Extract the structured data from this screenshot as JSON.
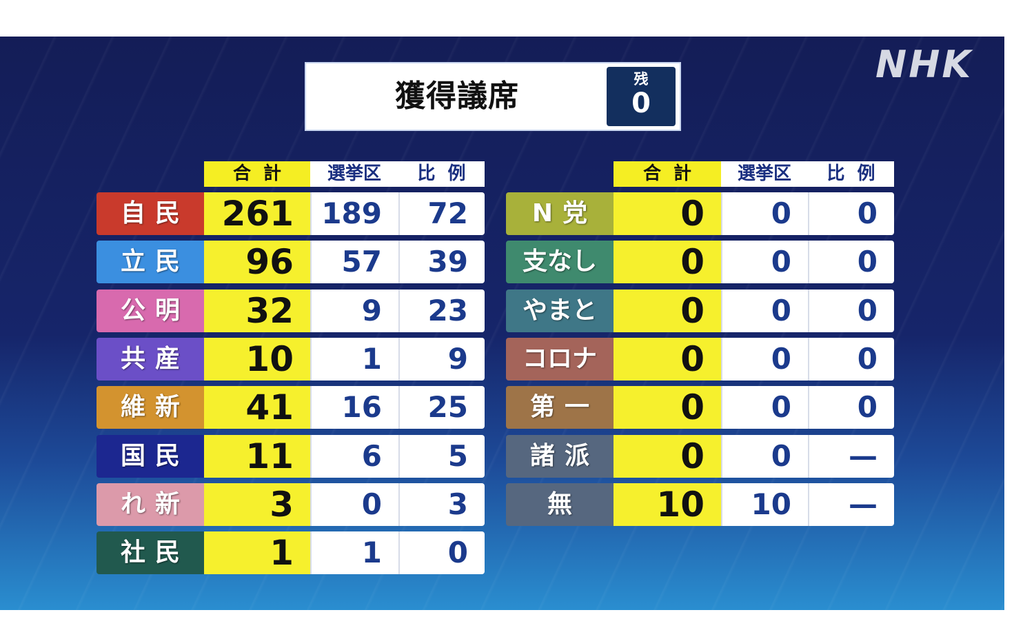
{
  "header": {
    "title": "獲得議席",
    "remaining_label": "残",
    "remaining_value": "0",
    "logo": "NHK"
  },
  "columns": {
    "total": "合計",
    "district": "選挙区",
    "proportional": "比例"
  },
  "left_table": [
    {
      "party": "自民",
      "color": "#c93a2c",
      "total": "261",
      "district": "189",
      "proportional": "72"
    },
    {
      "party": "立民",
      "color": "#3b8fe0",
      "total": "96",
      "district": "57",
      "proportional": "39"
    },
    {
      "party": "公明",
      "color": "#d86aae",
      "total": "32",
      "district": "9",
      "proportional": "23"
    },
    {
      "party": "共産",
      "color": "#6b4fc7",
      "total": "10",
      "district": "1",
      "proportional": "9"
    },
    {
      "party": "維新",
      "color": "#d3932f",
      "total": "41",
      "district": "16",
      "proportional": "25"
    },
    {
      "party": "国民",
      "color": "#1c2790",
      "total": "11",
      "district": "6",
      "proportional": "5"
    },
    {
      "party": "れ新",
      "color": "#dc9aaa",
      "total": "3",
      "district": "0",
      "proportional": "3"
    },
    {
      "party": "社民",
      "color": "#21594e",
      "total": "1",
      "district": "1",
      "proportional": "0"
    }
  ],
  "right_table": [
    {
      "party": "N党",
      "color": "#a8b13a",
      "total": "0",
      "district": "0",
      "proportional": "0"
    },
    {
      "party": "支なし",
      "color": "#3f8a6e",
      "total": "0",
      "district": "0",
      "proportional": "0"
    },
    {
      "party": "やまと",
      "color": "#3f7787",
      "total": "0",
      "district": "0",
      "proportional": "0"
    },
    {
      "party": "コロナ",
      "color": "#a4645a",
      "total": "0",
      "district": "0",
      "proportional": "0"
    },
    {
      "party": "第一",
      "color": "#9e7448",
      "total": "0",
      "district": "0",
      "proportional": "0"
    },
    {
      "party": "諸派",
      "color": "#56677f",
      "total": "0",
      "district": "0",
      "proportional": "—"
    },
    {
      "party": "無",
      "color": "#56677f",
      "total": "10",
      "district": "10",
      "proportional": "—"
    }
  ]
}
